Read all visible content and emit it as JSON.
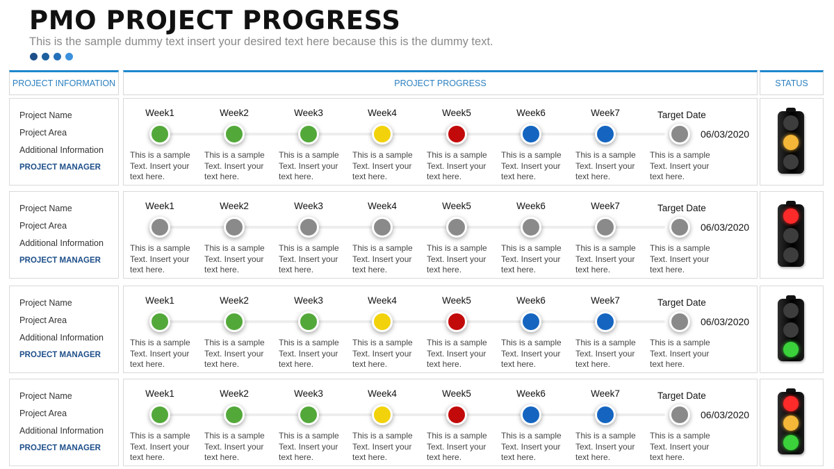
{
  "header": {
    "title": "PMO PROJECT PROGRESS",
    "subtitle": "This is the sample dummy text insert your desired text here because this is the dummy text.",
    "dot_colors": [
      "#1d4e89",
      "#1d5f9e",
      "#2470b8",
      "#3b91dd"
    ]
  },
  "columns": {
    "info": "PROJECT INFORMATION",
    "progress": "PROJECT PROGRESS",
    "status": "STATUS"
  },
  "status_colors": {
    "green": "#53a83a",
    "yellow": "#f2d20a",
    "red": "#c20a0a",
    "blue": "#1565c0",
    "gray": "#8a8a8a",
    "lamp_off": "#3d3d3d",
    "lamp_red": "#ff2a2a",
    "lamp_yellow": "#f4b738",
    "lamp_green": "#3bd13b"
  },
  "projects": [
    {
      "info": {
        "name": "Project Name",
        "area": "Project Area",
        "additional": "Additional Information",
        "manager": "PROJECT MANAGER"
      },
      "milestones": [
        {
          "label": "Week1",
          "status": "green",
          "text": "This is a sample Text. Insert your text here."
        },
        {
          "label": "Week2",
          "status": "green",
          "text": "This is a sample Text. Insert your text here."
        },
        {
          "label": "Week3",
          "status": "green",
          "text": "This is a sample Text. Insert your text here."
        },
        {
          "label": "Week4",
          "status": "yellow",
          "text": "This is a sample Text. Insert your text here."
        },
        {
          "label": "Week5",
          "status": "red",
          "text": "This is a sample Text. Insert your text here."
        },
        {
          "label": "Week6",
          "status": "blue",
          "text": "This is a sample Text. Insert your text here."
        },
        {
          "label": "Week7",
          "status": "blue",
          "text": "This is a sample Text. Insert your text here."
        },
        {
          "label": "Target Date",
          "status": "gray",
          "text": "This is a sample Text. Insert your text here."
        }
      ],
      "target_date": "06/03/2020",
      "traffic_light": [
        "off",
        "yellow",
        "off"
      ]
    },
    {
      "info": {
        "name": "Project Name",
        "area": "Project Area",
        "additional": "Additional Information",
        "manager": "PROJECT MANAGER"
      },
      "milestones": [
        {
          "label": "Week1",
          "status": "gray",
          "text": "This is a sample Text. Insert your text here."
        },
        {
          "label": "Week2",
          "status": "gray",
          "text": "This is a sample Text. Insert your text here."
        },
        {
          "label": "Week3",
          "status": "gray",
          "text": "This is a sample Text. Insert your text here."
        },
        {
          "label": "Week4",
          "status": "gray",
          "text": "This is a sample Text. Insert your text here."
        },
        {
          "label": "Week5",
          "status": "gray",
          "text": "This is a sample Text. Insert your text here."
        },
        {
          "label": "Week6",
          "status": "gray",
          "text": "This is a sample Text. Insert your text here."
        },
        {
          "label": "Week7",
          "status": "gray",
          "text": "This is a sample Text. Insert your text here."
        },
        {
          "label": "Target Date",
          "status": "gray",
          "text": "This is a sample Text. Insert your text here."
        }
      ],
      "target_date": "06/03/2020",
      "traffic_light": [
        "red",
        "off",
        "off"
      ]
    },
    {
      "info": {
        "name": "Project Name",
        "area": "Project Area",
        "additional": "Additional Information",
        "manager": "PROJECT MANAGER"
      },
      "milestones": [
        {
          "label": "Week1",
          "status": "green",
          "text": "This is a sample Text. Insert your text here."
        },
        {
          "label": "Week2",
          "status": "green",
          "text": "This is a sample Text. Insert your text here."
        },
        {
          "label": "Week3",
          "status": "green",
          "text": "This is a sample Text. Insert your text here."
        },
        {
          "label": "Week4",
          "status": "yellow",
          "text": "This is a sample Text. Insert your text here."
        },
        {
          "label": "Week5",
          "status": "red",
          "text": "This is a sample Text. Insert your text here."
        },
        {
          "label": "Week6",
          "status": "blue",
          "text": "This is a sample Text. Insert your text here."
        },
        {
          "label": "Week7",
          "status": "blue",
          "text": "This is a sample Text. Insert your text here."
        },
        {
          "label": "Target Date",
          "status": "gray",
          "text": "This is a sample Text. Insert your text here."
        }
      ],
      "target_date": "06/03/2020",
      "traffic_light": [
        "off",
        "off",
        "green"
      ]
    },
    {
      "info": {
        "name": "Project Name",
        "area": "Project Area",
        "additional": "Additional Information",
        "manager": "PROJECT MANAGER"
      },
      "milestones": [
        {
          "label": "Week1",
          "status": "green",
          "text": "This is a sample Text. Insert your text here."
        },
        {
          "label": "Week2",
          "status": "green",
          "text": "This is a sample Text. Insert your text here."
        },
        {
          "label": "Week3",
          "status": "green",
          "text": "This is a sample Text. Insert your text here."
        },
        {
          "label": "Week4",
          "status": "yellow",
          "text": "This is a sample Text. Insert your text here."
        },
        {
          "label": "Week5",
          "status": "red",
          "text": "This is a sample Text. Insert your text here."
        },
        {
          "label": "Week6",
          "status": "blue",
          "text": "This is a sample Text. Insert your text here."
        },
        {
          "label": "Week7",
          "status": "blue",
          "text": "This is a sample Text. Insert your text here."
        },
        {
          "label": "Target Date",
          "status": "gray",
          "text": "This is a sample Text. Insert your text here."
        }
      ],
      "target_date": "06/03/2020",
      "traffic_light": [
        "red",
        "yellow",
        "green"
      ]
    }
  ]
}
